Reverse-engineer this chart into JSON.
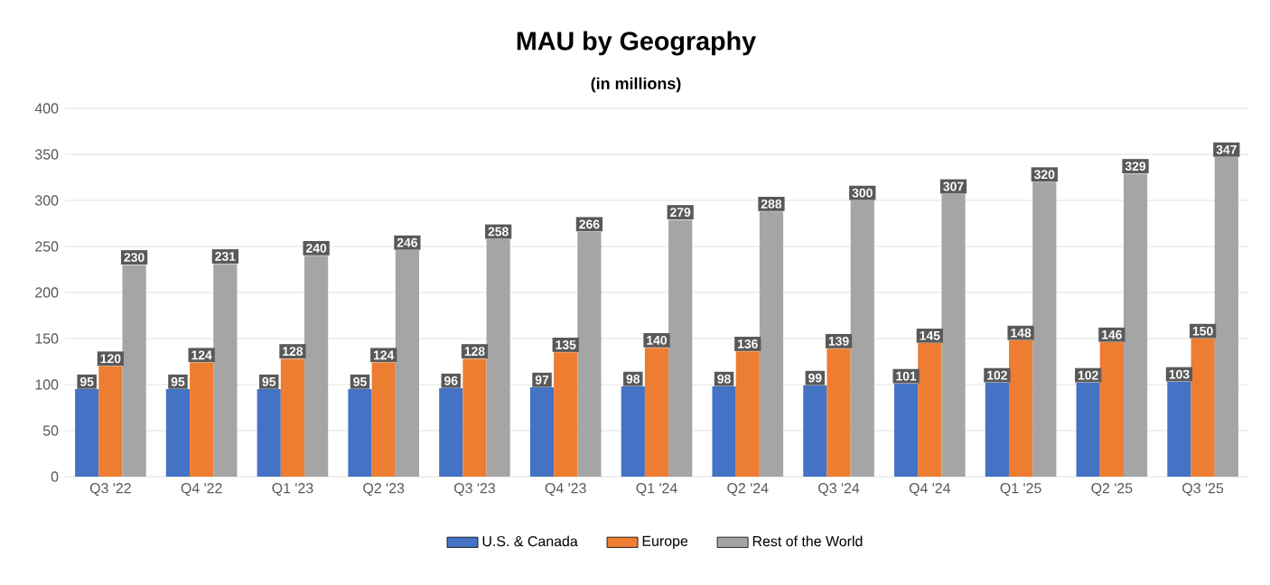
{
  "chart_data": {
    "type": "bar",
    "title": "MAU by Geography",
    "subtitle": "(in millions)",
    "categories": [
      "Q3 '22",
      "Q4 '22",
      "Q1 '23",
      "Q2 '23",
      "Q3 '23",
      "Q4 '23",
      "Q1 '24",
      "Q2 '24",
      "Q3 '24",
      "Q4 '24",
      "Q1 '25",
      "Q2 '25",
      "Q3 '25"
    ],
    "series": [
      {
        "name": "U.S. & Canada",
        "color": "#4472c4",
        "values": [
          95,
          95,
          95,
          95,
          96,
          97,
          98,
          98,
          99,
          101,
          102,
          102,
          103
        ]
      },
      {
        "name": "Europe",
        "color": "#ed7d31",
        "values": [
          120,
          124,
          128,
          124,
          128,
          135,
          140,
          136,
          139,
          145,
          148,
          146,
          150
        ]
      },
      {
        "name": "Rest of the World",
        "color": "#a5a5a5",
        "values": [
          230,
          231,
          240,
          246,
          258,
          266,
          279,
          288,
          300,
          307,
          320,
          329,
          347
        ]
      }
    ],
    "ylim": [
      0,
      400
    ],
    "yticks": [
      0,
      50,
      100,
      150,
      200,
      250,
      300,
      350,
      400
    ],
    "grid": "y",
    "legend": "bottom",
    "data_labels": true
  }
}
